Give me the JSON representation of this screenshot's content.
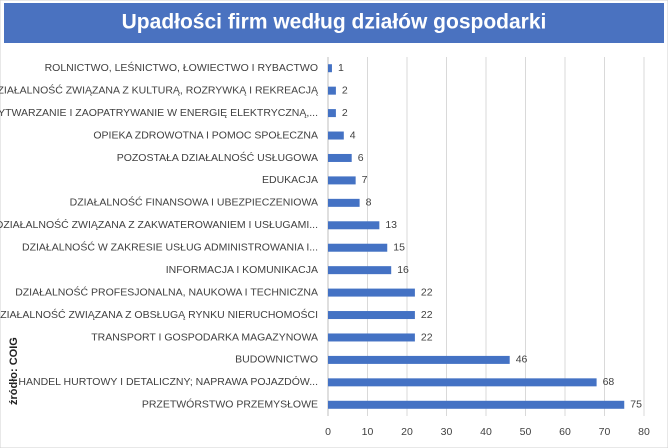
{
  "chart_data": {
    "type": "bar",
    "orientation": "horizontal",
    "title": "Upadłości firm według działów gospodarki",
    "source": "źródło: COIG",
    "categories": [
      "ROLNICTWO, LEŚNICTWO, ŁOWIECTWO I RYBACTWO",
      "DZIAŁALNOŚĆ ZWIĄZANA Z KULTURĄ, ROZRYWKĄ I REKREACJĄ",
      "WYTWARZANIE I ZAOPATRYWANIE W ENERGIĘ ELEKTRYCZNĄ,...",
      "OPIEKA ZDROWOTNA I POMOC SPOŁECZNA",
      "POZOSTAŁA DZIAŁALNOŚĆ USŁUGOWA",
      "EDUKACJA",
      "DZIAŁALNOŚĆ FINANSOWA I UBEZPIECZENIOWA",
      "DZIAŁALNOŚĆ ZWIĄZANA Z ZAKWATEROWANIEM I USŁUGAMI...",
      "DZIAŁALNOŚĆ W ZAKRESIE USŁUG ADMINISTROWANIA I...",
      "INFORMACJA I KOMUNIKACJA",
      "DZIAŁALNOŚĆ PROFESJONALNA, NAUKOWA I TECHNICZNA",
      "DZIAŁALNOŚĆ ZWIĄZANA Z OBSŁUGĄ RYNKU NIERUCHOMOŚCI",
      "TRANSPORT I GOSPODARKA MAGAZYNOWA",
      "BUDOWNICTWO",
      "HANDEL HURTOWY I DETALICZNY; NAPRAWA POJAZDÓW...",
      "PRZETWÓRSTWO PRZEMYSŁOWE"
    ],
    "values": [
      1,
      2,
      2,
      4,
      6,
      7,
      8,
      13,
      15,
      16,
      22,
      22,
      22,
      46,
      68,
      75
    ],
    "color": "#4472c4",
    "xlim": [
      0,
      80
    ],
    "xticks": [
      0,
      10,
      20,
      30,
      40,
      50,
      60,
      70,
      80
    ],
    "grid": true
  }
}
